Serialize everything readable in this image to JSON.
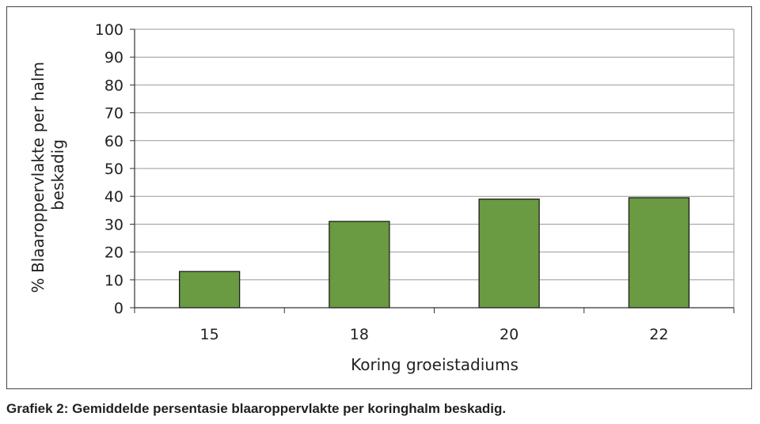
{
  "caption": "Grafiek 2: Gemiddelde persentasie blaaroppervlakte per koringhalm beskadig.",
  "chart_data": {
    "type": "bar",
    "categories": [
      "15",
      "18",
      "20",
      "22"
    ],
    "values": [
      13,
      31,
      39,
      39.5
    ],
    "xlabel": "Koring groeistadiums",
    "ylabel": [
      "% Blaaroppervlakte per halm",
      "beskadig"
    ],
    "ylim": [
      0,
      100
    ],
    "yticks": [
      "0",
      "10",
      "20",
      "30",
      "40",
      "50",
      "60",
      "70",
      "80",
      "90",
      "100"
    ],
    "grid": true,
    "legend": "none",
    "colors": {
      "bar": "#6a9a41",
      "bar_edge": "#1e1e1e",
      "grid": "#999999",
      "axis": "#333333"
    }
  }
}
